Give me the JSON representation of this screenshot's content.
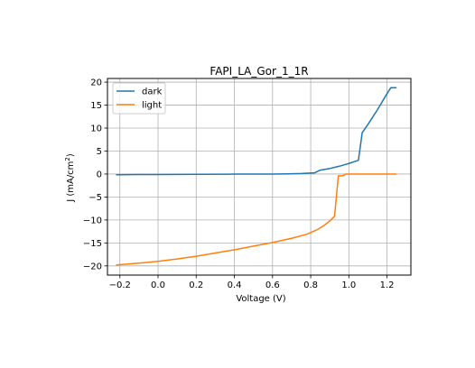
{
  "chart_data": {
    "type": "line",
    "title": "FAPI_LA_Gor_1_1R",
    "xlabel": "Voltage (V)",
    "ylabel_main": "J (mA/cm",
    "ylabel_sup": "2",
    "ylabel_close": ")",
    "xlim": [
      -0.265,
      1.325
    ],
    "ylim": [
      -22.0,
      20.8
    ],
    "xticks": [
      -0.2,
      0.0,
      0.2,
      0.4,
      0.6,
      0.8,
      1.0,
      1.2
    ],
    "xtick_labels": [
      "−0.2",
      "0.0",
      "0.2",
      "0.4",
      "0.6",
      "0.8",
      "1.0",
      "1.2"
    ],
    "yticks": [
      -20,
      -15,
      -10,
      -5,
      0,
      5,
      10,
      15,
      20
    ],
    "ytick_labels": [
      "−20",
      "−15",
      "−10",
      "−5",
      "0",
      "5",
      "10",
      "15",
      "20"
    ],
    "grid": true,
    "legend_position": "upper-left",
    "series": [
      {
        "name": "dark",
        "color": "#1f77b4",
        "points": [
          [
            -0.22,
            -0.15
          ],
          [
            -0.1,
            -0.12
          ],
          [
            0.0,
            -0.1
          ],
          [
            0.2,
            -0.06
          ],
          [
            0.4,
            -0.02
          ],
          [
            0.6,
            0.0
          ],
          [
            0.68,
            0.05
          ],
          [
            0.75,
            0.1
          ],
          [
            0.82,
            0.25
          ],
          [
            0.85,
            0.85
          ],
          [
            0.9,
            1.2
          ],
          [
            0.95,
            1.7
          ],
          [
            1.0,
            2.3
          ],
          [
            1.05,
            3.0
          ],
          [
            1.07,
            9.0
          ],
          [
            1.1,
            10.8
          ],
          [
            1.15,
            14.0
          ],
          [
            1.2,
            17.5
          ],
          [
            1.22,
            18.8
          ],
          [
            1.25,
            18.8
          ]
        ]
      },
      {
        "name": "light",
        "color": "#ff7f0e",
        "points": [
          [
            -0.22,
            -19.8
          ],
          [
            -0.1,
            -19.4
          ],
          [
            0.0,
            -19.0
          ],
          [
            0.1,
            -18.5
          ],
          [
            0.2,
            -17.9
          ],
          [
            0.3,
            -17.2
          ],
          [
            0.4,
            -16.5
          ],
          [
            0.5,
            -15.7
          ],
          [
            0.6,
            -14.9
          ],
          [
            0.7,
            -14.0
          ],
          [
            0.78,
            -13.1
          ],
          [
            0.83,
            -12.2
          ],
          [
            0.87,
            -11.2
          ],
          [
            0.9,
            -10.2
          ],
          [
            0.925,
            -9.2
          ],
          [
            0.945,
            -0.4
          ],
          [
            0.97,
            -0.35
          ],
          [
            0.985,
            0.0
          ],
          [
            1.0,
            0.0
          ],
          [
            1.1,
            0.0
          ],
          [
            1.2,
            0.0
          ],
          [
            1.25,
            0.0
          ]
        ]
      }
    ]
  }
}
